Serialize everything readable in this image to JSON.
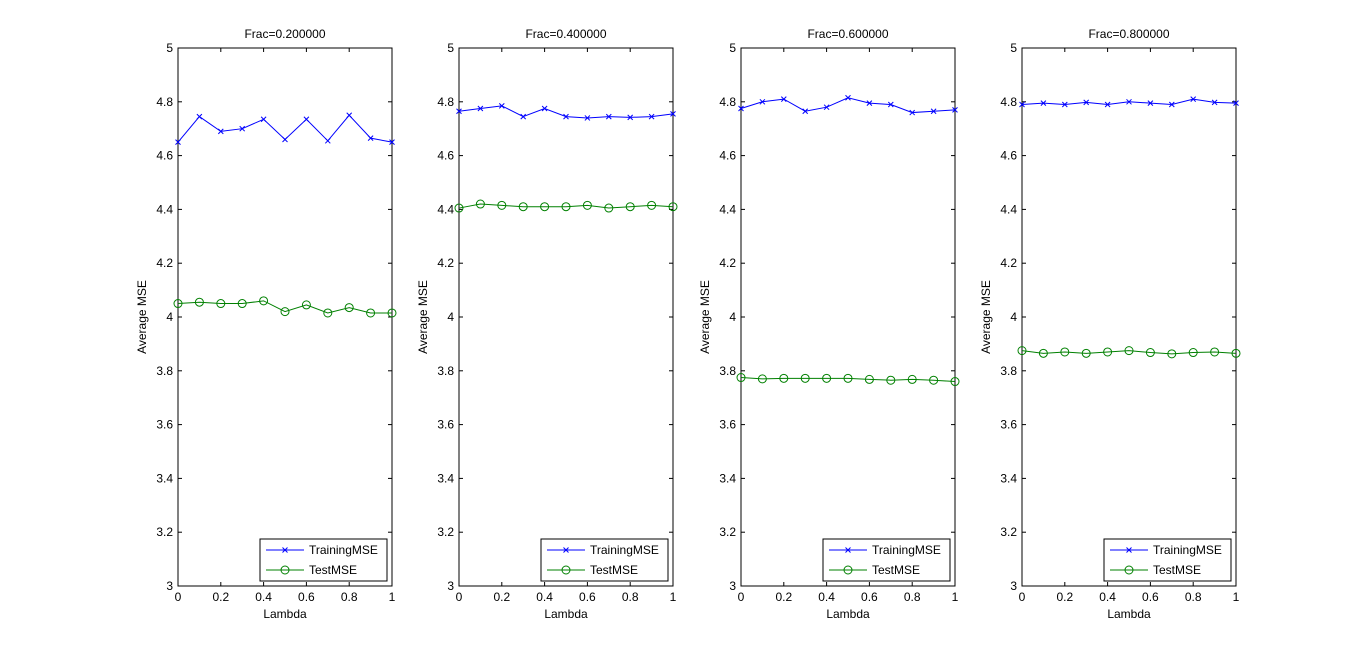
{
  "chart_data": [
    {
      "type": "line",
      "title": "Frac=0.200000",
      "xlabel": "Lambda",
      "ylabel": "Average MSE",
      "xlim": [
        0,
        1
      ],
      "ylim": [
        3,
        5
      ],
      "xticks": [
        "0",
        "0.2",
        "0.4",
        "0.6",
        "0.8",
        "1"
      ],
      "yticks": [
        "3",
        "3.2",
        "3.4",
        "3.6",
        "3.8",
        "4",
        "4.2",
        "4.4",
        "4.6",
        "4.8",
        "5"
      ],
      "legend_position": "bottom-right",
      "grid": false,
      "x": [
        0,
        0.1,
        0.2,
        0.3,
        0.4,
        0.5,
        0.6,
        0.7,
        0.8,
        0.9,
        1.0
      ],
      "series": [
        {
          "name": "TrainingMSE",
          "marker": "x",
          "color": "#0000ff",
          "values": [
            4.65,
            4.745,
            4.69,
            4.7,
            4.735,
            4.66,
            4.735,
            4.655,
            4.75,
            4.665,
            4.65
          ]
        },
        {
          "name": "TestMSE",
          "marker": "o",
          "color": "#008000",
          "values": [
            4.05,
            4.055,
            4.05,
            4.05,
            4.06,
            4.02,
            4.045,
            4.015,
            4.035,
            4.015,
            4.015
          ]
        }
      ]
    },
    {
      "type": "line",
      "title": "Frac=0.400000",
      "xlabel": "Lambda",
      "ylabel": "Average MSE",
      "xlim": [
        0,
        1
      ],
      "ylim": [
        3,
        5
      ],
      "xticks": [
        "0",
        "0.2",
        "0.4",
        "0.6",
        "0.8",
        "1"
      ],
      "yticks": [
        "3",
        "3.2",
        "3.4",
        "3.6",
        "3.8",
        "4",
        "4.2",
        "4.4",
        "4.6",
        "4.8",
        "5"
      ],
      "legend_position": "bottom-right",
      "grid": false,
      "x": [
        0,
        0.1,
        0.2,
        0.3,
        0.4,
        0.5,
        0.6,
        0.7,
        0.8,
        0.9,
        1.0
      ],
      "series": [
        {
          "name": "TrainingMSE",
          "marker": "x",
          "color": "#0000ff",
          "values": [
            4.765,
            4.775,
            4.785,
            4.745,
            4.775,
            4.745,
            4.74,
            4.745,
            4.742,
            4.745,
            4.755
          ]
        },
        {
          "name": "TestMSE",
          "marker": "o",
          "color": "#008000",
          "values": [
            4.405,
            4.42,
            4.415,
            4.41,
            4.41,
            4.41,
            4.415,
            4.405,
            4.41,
            4.415,
            4.41
          ]
        }
      ]
    },
    {
      "type": "line",
      "title": "Frac=0.600000",
      "xlabel": "Lambda",
      "ylabel": "Average MSE",
      "xlim": [
        0,
        1
      ],
      "ylim": [
        3,
        5
      ],
      "xticks": [
        "0",
        "0.2",
        "0.4",
        "0.6",
        "0.8",
        "1"
      ],
      "yticks": [
        "3",
        "3.2",
        "3.4",
        "3.6",
        "3.8",
        "4",
        "4.2",
        "4.4",
        "4.6",
        "4.8",
        "5"
      ],
      "legend_position": "bottom-right",
      "grid": false,
      "x": [
        0,
        0.1,
        0.2,
        0.3,
        0.4,
        0.5,
        0.6,
        0.7,
        0.8,
        0.9,
        1.0
      ],
      "series": [
        {
          "name": "TrainingMSE",
          "marker": "x",
          "color": "#0000ff",
          "values": [
            4.775,
            4.8,
            4.81,
            4.765,
            4.78,
            4.815,
            4.795,
            4.79,
            4.76,
            4.765,
            4.77
          ]
        },
        {
          "name": "TestMSE",
          "marker": "o",
          "color": "#008000",
          "values": [
            3.775,
            3.77,
            3.772,
            3.772,
            3.772,
            3.772,
            3.768,
            3.765,
            3.768,
            3.765,
            3.76
          ]
        }
      ]
    },
    {
      "type": "line",
      "title": "Frac=0.800000",
      "xlabel": "Lambda",
      "ylabel": "Average MSE",
      "xlim": [
        0,
        1
      ],
      "ylim": [
        3,
        5
      ],
      "xticks": [
        "0",
        "0.2",
        "0.4",
        "0.6",
        "0.8",
        "1"
      ],
      "yticks": [
        "3",
        "3.2",
        "3.4",
        "3.6",
        "3.8",
        "4",
        "4.2",
        "4.4",
        "4.6",
        "4.8",
        "5"
      ],
      "legend_position": "bottom-right",
      "grid": false,
      "x": [
        0,
        0.1,
        0.2,
        0.3,
        0.4,
        0.5,
        0.6,
        0.7,
        0.8,
        0.9,
        1.0
      ],
      "series": [
        {
          "name": "TrainingMSE",
          "marker": "x",
          "color": "#0000ff",
          "values": [
            4.79,
            4.795,
            4.79,
            4.798,
            4.79,
            4.8,
            4.795,
            4.79,
            4.81,
            4.798,
            4.795
          ]
        },
        {
          "name": "TestMSE",
          "marker": "o",
          "color": "#008000",
          "values": [
            3.875,
            3.865,
            3.87,
            3.865,
            3.87,
            3.875,
            3.868,
            3.863,
            3.868,
            3.87,
            3.865
          ]
        }
      ]
    }
  ]
}
